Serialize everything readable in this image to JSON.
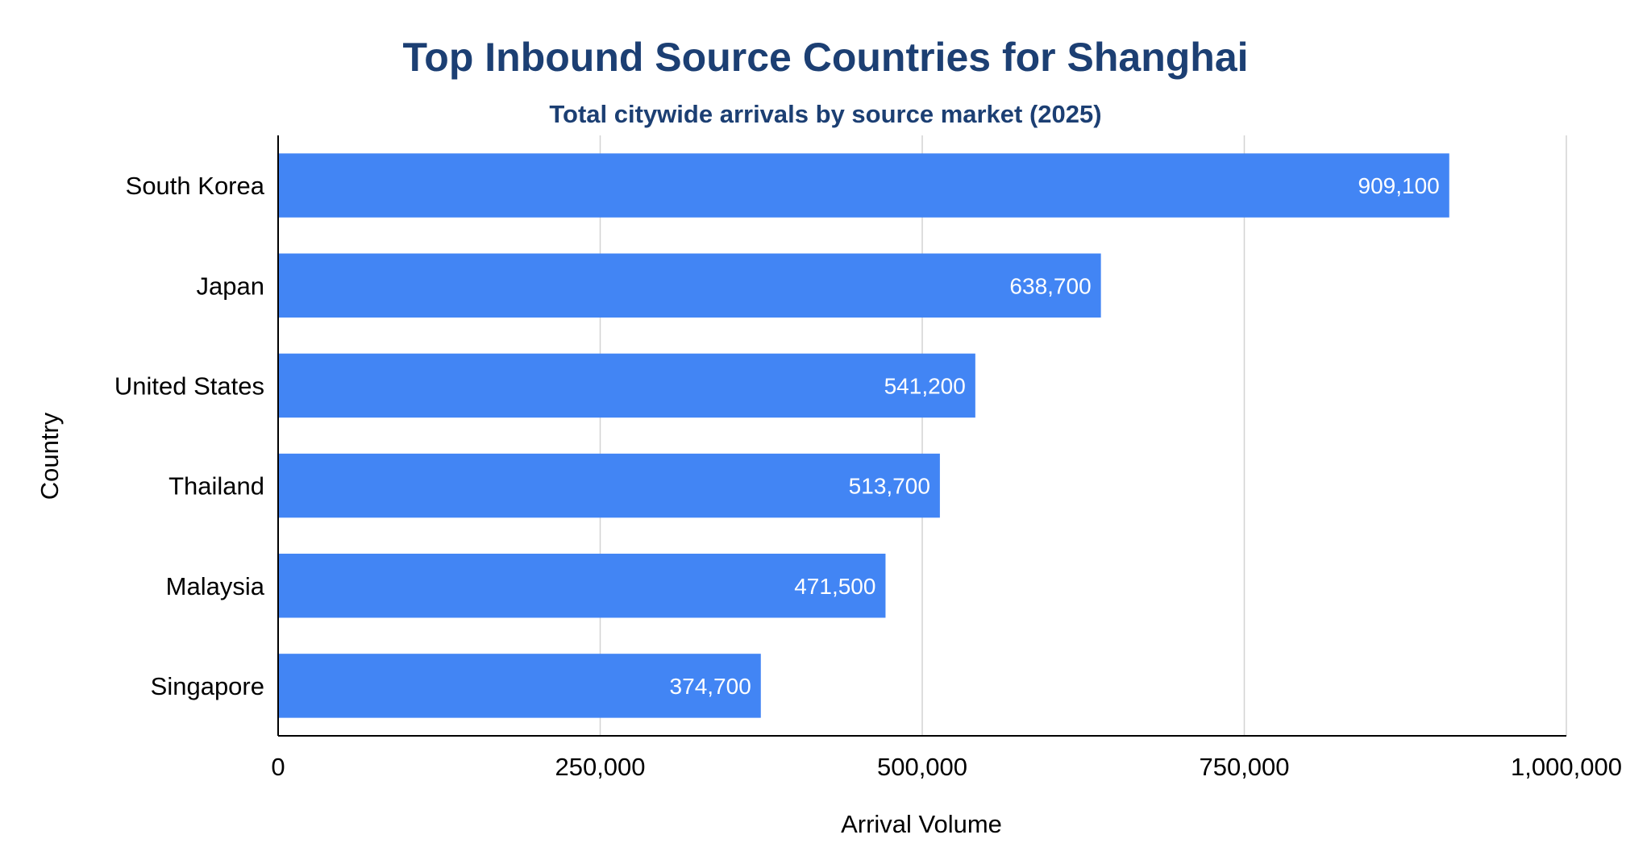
{
  "chart_data": {
    "type": "bar",
    "orientation": "horizontal",
    "title": "Top Inbound Source Countries for Shanghai",
    "subtitle": "Total citywide arrivals by source market (2025)",
    "xlabel": "Arrival Volume",
    "ylabel": "Country",
    "categories": [
      "South Korea",
      "Japan",
      "United States",
      "Thailand",
      "Malaysia",
      "Singapore"
    ],
    "values": [
      909100,
      638700,
      541200,
      513700,
      471500,
      374700
    ],
    "value_labels": [
      "909,100",
      "638,700",
      "541,200",
      "513,700",
      "471,500",
      "374,700"
    ],
    "xlim": [
      0,
      1000000
    ],
    "xticks": [
      0,
      250000,
      500000,
      750000,
      1000000
    ],
    "xtick_labels": [
      "0",
      "250,000",
      "500,000",
      "750,000",
      "1,000,000"
    ],
    "grid": "vertical",
    "legend": "none",
    "colors": {
      "bar": "#4285F4",
      "title": "#1C3F73",
      "grid": "#D3D3D3",
      "axis": "#000000",
      "bar_label": "#FFFFFF"
    }
  }
}
